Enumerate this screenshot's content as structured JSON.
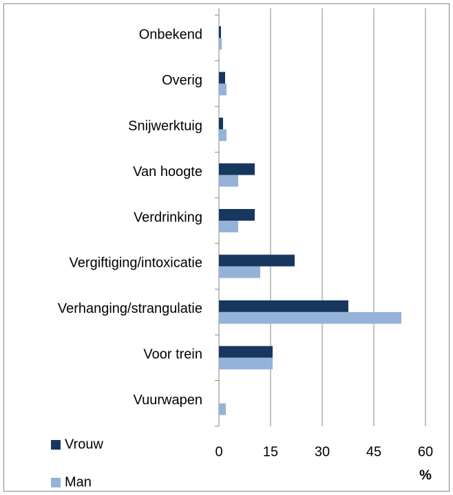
{
  "chart_data": {
    "type": "bar",
    "orientation": "horizontal",
    "categories": [
      "Onbekend",
      "Overig",
      "Snijwerktuig",
      "Van hoogte",
      "Verdrinking",
      "Vergiftiging/intoxicatie",
      "Verhanging/strangulatie",
      "Voor trein",
      "Vuurwapen"
    ],
    "series": [
      {
        "name": "Vrouw",
        "color": "#17375e",
        "values": [
          0.6,
          1.8,
          1.2,
          10.4,
          10.4,
          22,
          37.6,
          15.6,
          0
        ]
      },
      {
        "name": "Man",
        "color": "#95b3d7",
        "values": [
          0.8,
          2.2,
          2.2,
          5.6,
          5.6,
          12,
          53,
          15.6,
          2
        ]
      }
    ],
    "x_label": "%",
    "xlim": [
      0,
      60
    ],
    "xticks": [
      0,
      15,
      30,
      45,
      60
    ],
    "grid": true,
    "legend": "lower left"
  }
}
